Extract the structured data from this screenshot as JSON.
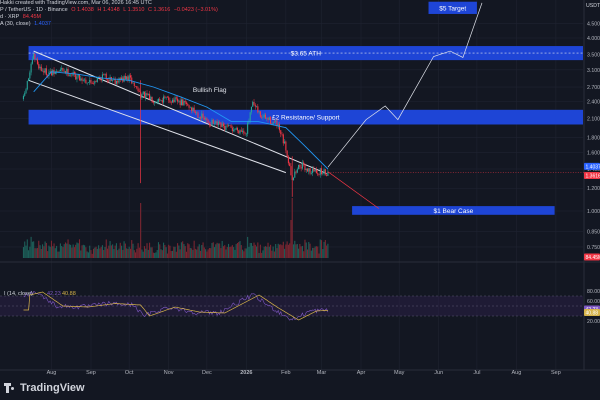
{
  "header": {
    "line1": "Hakki created with TradingView.com, Mar 06, 2026 16:45 UTC",
    "line2": {
      "symbol": "P / TetherUS · 1D · Binance",
      "o": "O 1.4038",
      "h": "H 1.4148",
      "l": "L 1.3510",
      "c": "C 1.3616",
      "chg": "−0.0423 (−3.01%)"
    },
    "line3": {
      "label": "d · XRP",
      "value": "84.45M"
    },
    "line4": {
      "label": "A (30, close)",
      "value": "1.4037"
    }
  },
  "logo": {
    "text": "TradingView"
  },
  "colors": {
    "background": "#131722",
    "zone": "#1e45d6",
    "up": "#26a69a",
    "down": "#f23645",
    "ma": "#2196f3",
    "rsi": "#7e57c2",
    "rsi_ma": "#d6b34a"
  },
  "chart_data": {
    "type": "candlestick",
    "price_axis": {
      "scale": "log",
      "currency": "USDT",
      "ticks": [
        "4.5000",
        "4.0000",
        "3.5000",
        "3.1000",
        "2.7000",
        "2.4000",
        "2.1000",
        "1.8000",
        "1.6000",
        "1.4000",
        "1.2000",
        "1.0000",
        "0.8500",
        "0.7500",
        "0.6750",
        "0.6000"
      ],
      "current_price": "1.3616",
      "ma_label": "1.4037",
      "volume_label": "84.45M"
    },
    "time_axis": {
      "ticks": [
        "Aug",
        "Sep",
        "Oct",
        "Nov",
        "Dec",
        "2026",
        "Feb",
        "Mar",
        "Apr",
        "May",
        "Jun",
        "Jul",
        "Aug",
        "Sep"
      ]
    },
    "zones": [
      {
        "label": "$5 Target",
        "low": 4.85,
        "high": 5.35,
        "from": "2026-05-24",
        "to": "2026-07-01"
      },
      {
        "label": "$3.65 ATH",
        "low": 3.35,
        "high": 3.75,
        "from": "2025-07-14",
        "to": "2026-09-30"
      },
      {
        "label": "£2 Resistance/ Support",
        "low": 2.0,
        "high": 2.25,
        "from": "2025-07-14",
        "to": "2026-09-30"
      },
      {
        "label": "$1 Bear Case",
        "low": 0.97,
        "high": 1.04,
        "from": "2026-03-25",
        "to": "2026-08-31"
      }
    ],
    "annotations": [
      {
        "text": "Bullish Flag",
        "date": "2025-11-20",
        "price": 2.6
      }
    ],
    "flag_channel": {
      "upper": [
        [
          "2025-07-18",
          3.6
        ],
        [
          "2026-03-05",
          1.35
        ]
      ],
      "lower": [
        [
          "2025-07-14",
          2.85
        ],
        [
          "2026-02-01",
          1.36
        ]
      ]
    },
    "projection_up": [
      [
        "2026-03-06",
        1.42
      ],
      [
        "2026-04-05",
        2.08
      ],
      [
        "2026-04-20",
        2.32
      ],
      [
        "2026-04-30",
        2.08
      ],
      [
        "2026-05-28",
        3.45
      ],
      [
        "2026-06-10",
        3.6
      ],
      [
        "2026-06-20",
        3.42
      ],
      [
        "2026-07-05",
        5.3
      ]
    ],
    "projection_down": [
      [
        "2026-03-06",
        1.37
      ],
      [
        "2026-04-15",
        1.02
      ]
    ],
    "price_path": [
      [
        "2025-07-10",
        2.45
      ],
      [
        "2025-07-18",
        3.45
      ],
      [
        "2025-07-24",
        3.1
      ],
      [
        "2025-08-01",
        3.0
      ],
      [
        "2025-08-10",
        3.1
      ],
      [
        "2025-08-20",
        2.95
      ],
      [
        "2025-09-01",
        2.8
      ],
      [
        "2025-09-10",
        2.95
      ],
      [
        "2025-09-20",
        2.85
      ],
      [
        "2025-10-01",
        2.9
      ],
      [
        "2025-10-10",
        2.55
      ],
      [
        "2025-10-20",
        2.45
      ],
      [
        "2025-11-01",
        2.45
      ],
      [
        "2025-11-15",
        2.35
      ],
      [
        "2025-12-01",
        2.05
      ],
      [
        "2025-12-15",
        1.95
      ],
      [
        "2026-01-01",
        1.9
      ],
      [
        "2026-01-06",
        2.35
      ],
      [
        "2026-01-12",
        2.15
      ],
      [
        "2026-01-25",
        2.0
      ],
      [
        "2026-02-01",
        1.65
      ],
      [
        "2026-02-06",
        1.3
      ],
      [
        "2026-02-12",
        1.45
      ],
      [
        "2026-02-20",
        1.38
      ],
      [
        "2026-03-06",
        1.36
      ]
    ],
    "moving_average": [
      [
        "2025-07-18",
        2.6
      ],
      [
        "2025-08-01",
        3.05
      ],
      [
        "2025-08-20",
        3.0
      ],
      [
        "2025-09-10",
        2.9
      ],
      [
        "2025-10-01",
        2.85
      ],
      [
        "2025-10-20",
        2.7
      ],
      [
        "2025-11-10",
        2.5
      ],
      [
        "2025-12-01",
        2.3
      ],
      [
        "2025-12-20",
        2.05
      ],
      [
        "2026-01-10",
        2.05
      ],
      [
        "2026-02-01",
        1.95
      ],
      [
        "2026-02-15",
        1.7
      ],
      [
        "2026-03-06",
        1.4
      ]
    ],
    "rsi": {
      "label": "I (14, close)",
      "value": "42.23",
      "ma_value": "40.88",
      "ticks": [
        "80.00",
        "60.00",
        "40.00",
        "20.00"
      ],
      "band": [
        30,
        70
      ]
    }
  }
}
